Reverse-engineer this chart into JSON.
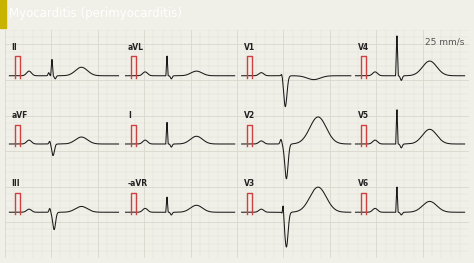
{
  "title": "Myocarditis (perimyocarditis)",
  "title_bg": "#3bbcbc",
  "title_fg": "#ffffff",
  "title_accent": "#c8b400",
  "speed_label": "25 mm/s",
  "bg_color": "#f0f0e8",
  "grid_minor_color": "#d8d8cc",
  "grid_major_color": "#c0c0b0",
  "ecg_color": "#1a1a1a",
  "marker_color": "#d04040",
  "leads": [
    {
      "name": "II",
      "row": 0,
      "col": 0,
      "type": "II"
    },
    {
      "name": "aVL",
      "row": 0,
      "col": 1,
      "type": "aVL"
    },
    {
      "name": "V1",
      "row": 0,
      "col": 2,
      "type": "V1"
    },
    {
      "name": "V4",
      "row": 0,
      "col": 3,
      "type": "V4"
    },
    {
      "name": "aVF",
      "row": 1,
      "col": 0,
      "type": "aVF"
    },
    {
      "name": "I",
      "row": 1,
      "col": 1,
      "type": "I"
    },
    {
      "name": "V2",
      "row": 1,
      "col": 2,
      "type": "V2"
    },
    {
      "name": "V5",
      "row": 1,
      "col": 3,
      "type": "V5"
    },
    {
      "name": "III",
      "row": 2,
      "col": 0,
      "type": "III"
    },
    {
      "name": "-aVR",
      "row": 2,
      "col": 1,
      "type": "aVR"
    },
    {
      "name": "V3",
      "row": 2,
      "col": 2,
      "type": "V3"
    },
    {
      "name": "V6",
      "row": 2,
      "col": 3,
      "type": "V6"
    }
  ]
}
